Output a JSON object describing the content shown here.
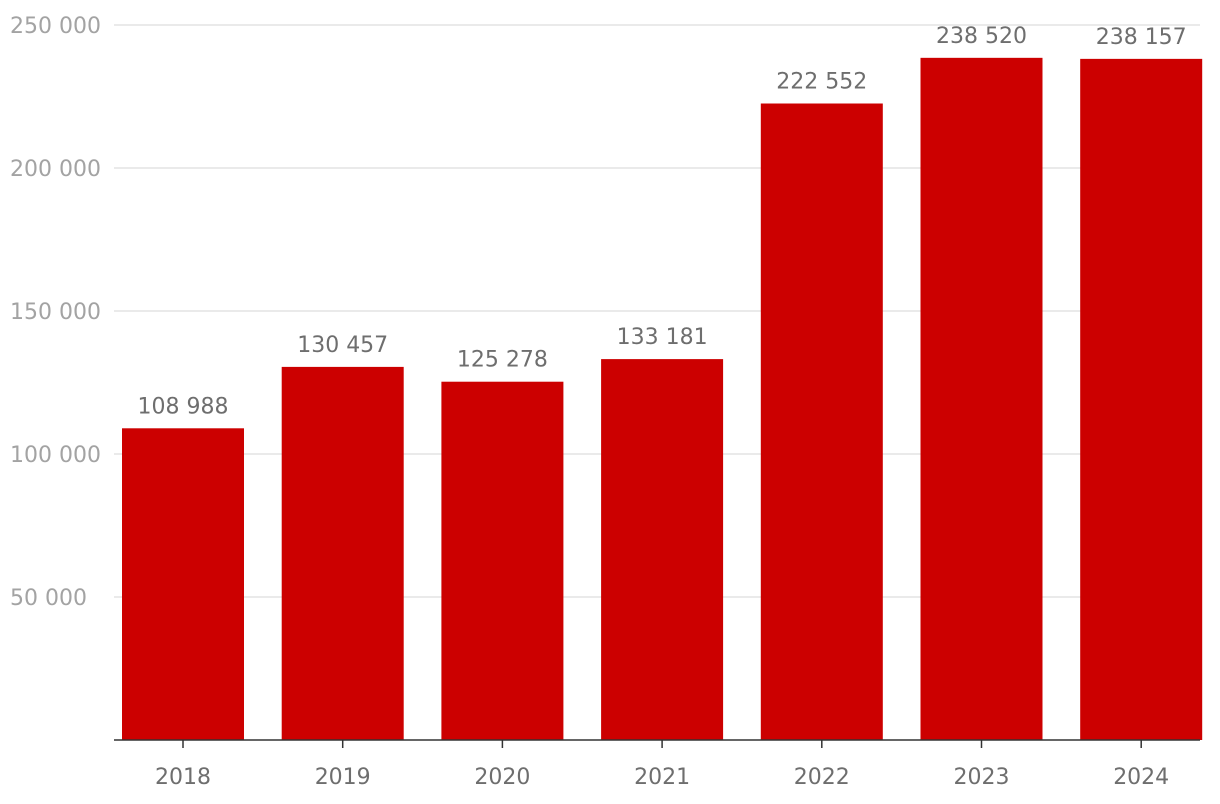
{
  "chart_data": {
    "type": "bar",
    "title": "",
    "xlabel": "",
    "ylabel": "",
    "categories": [
      "2018",
      "2019",
      "2020",
      "2021",
      "2022",
      "2023",
      "2024"
    ],
    "values": [
      108988,
      130457,
      125278,
      133181,
      222552,
      238520,
      238157
    ],
    "value_labels": [
      "108 988",
      "130 457",
      "125 278",
      "133 181",
      "222 552",
      "238 520",
      "238 157"
    ],
    "ylim": [
      0,
      250000
    ],
    "y_ticks": [
      50000,
      100000,
      150000,
      200000,
      250000
    ],
    "y_tick_labels": [
      "50 000",
      "100 000",
      "150 000",
      "200 000",
      "250 000"
    ],
    "grid": true,
    "legend": "none",
    "colors": {
      "bar": "#cc0000"
    }
  }
}
